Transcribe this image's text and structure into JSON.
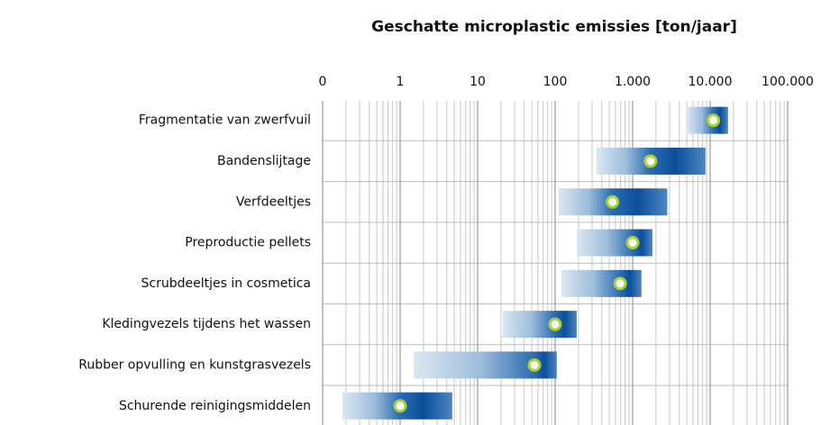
{
  "chart_data": {
    "type": "range",
    "title": "Geschatte  microplastic emissies   [ton/jaar]",
    "categories": [
      "Fragmentatie van zwerfvuil",
      "Bandenslijtage",
      "Verfdeeltjes",
      "Preproductie pellets",
      "Scrubdeeltjes in cosmetica",
      "Kledingvezels tijdens het wassen",
      "Rubber opvulling en kunstgrasvezels",
      "Schurende reinigingsmiddelen"
    ],
    "low": [
      5000,
      340,
      110,
      190,
      120,
      21,
      1.5,
      0.18
    ],
    "high": [
      17000,
      8700,
      2800,
      1800,
      1300,
      190,
      105,
      4.7
    ],
    "values": [
      11000,
      1700,
      550,
      1000,
      690,
      100,
      54,
      1
    ],
    "color": "#0a4f9a",
    "marker_color": "#a8d431",
    "xscale": "log",
    "xlim": [
      0.1,
      100000
    ],
    "xticks": [
      {
        "value": 0.1,
        "label": "0"
      },
      1,
      10,
      100,
      {
        "value": 1000,
        "label": "1.000"
      },
      {
        "value": 10000,
        "label": "10.000"
      },
      {
        "value": 100000,
        "label": "100.000"
      }
    ],
    "grid": true
  }
}
